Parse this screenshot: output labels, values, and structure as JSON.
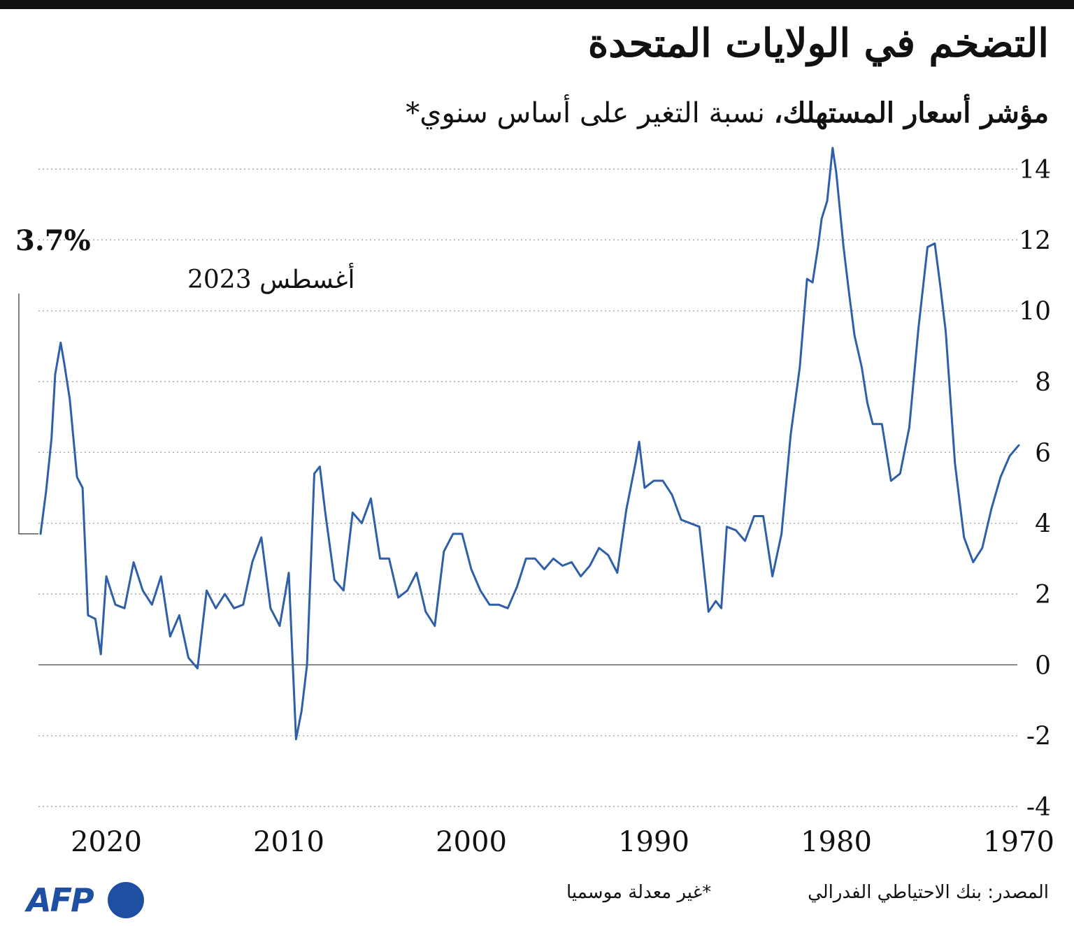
{
  "title": "التضخم في الولايات المتحدة",
  "subtitle_bold": "مؤشر أسعار المستهلك،",
  "subtitle_rest": " نسبة التغير على أساس سنوي*",
  "annotation": {
    "value": "3.7%",
    "date": "أغسطس 2023"
  },
  "source": "المصدر: بنك الاحتياطي الفدرالي",
  "footnote": "*غير معدلة موسميا",
  "logo": "AFP",
  "colors": {
    "line": "#2f5fa8",
    "logo": "#1f4fa0"
  },
  "chart_data": {
    "type": "line",
    "title": "التضخم في الولايات المتحدة",
    "ylabel": "",
    "xlabel": "",
    "x_reversed": true,
    "ylim": [
      -4,
      14
    ],
    "yticks": [
      "-4",
      "-2",
      "0",
      "2",
      "4",
      "6",
      "8",
      "10",
      "12",
      "14"
    ],
    "xticks": [
      "2020",
      "2010",
      "2000",
      "1990",
      "1980",
      "1970"
    ],
    "series": [
      {
        "x": [
          1970.0,
          1970.5,
          1971.0,
          1971.5,
          1972.0,
          1972.5,
          1973.0,
          1973.5,
          1974.0,
          1974.3,
          1974.6,
          1975.0,
          1975.5,
          1976.0,
          1976.5,
          1977.0,
          1977.5,
          1978.0,
          1978.3,
          1978.6,
          1979.0,
          1979.3,
          1979.6,
          1980.0,
          1980.2,
          1980.5,
          1980.8,
          1981.0,
          1981.3,
          1981.6,
          1982.0,
          1982.5,
          1983.0,
          1983.5,
          1984.0,
          1984.5,
          1985.0,
          1985.5,
          1986.0,
          1986.3,
          1986.6,
          1987.0,
          1987.5,
          1988.0,
          1988.5,
          1989.0,
          1989.5,
          1990.0,
          1990.5,
          1990.8,
          1991.0,
          1991.5,
          1992.0,
          1992.5,
          1993.0,
          1993.5,
          1994.0,
          1994.5,
          1995.0,
          1995.5,
          1996.0,
          1996.5,
          1997.0,
          1997.5,
          1998.0,
          1998.5,
          1999.0,
          1999.5,
          2000.0,
          2000.5,
          2001.0,
          2001.5,
          2002.0,
          2002.5,
          2003.0,
          2003.5,
          2004.0,
          2004.5,
          2005.0,
          2005.5,
          2006.0,
          2006.5,
          2007.0,
          2007.5,
          2008.0,
          2008.3,
          2008.6,
          2009.0,
          2009.3,
          2009.6,
          2010.0,
          2010.5,
          2011.0,
          2011.5,
          2012.0,
          2012.5,
          2013.0,
          2013.5,
          2014.0,
          2014.5,
          2015.0,
          2015.5,
          2016.0,
          2016.5,
          2017.0,
          2017.5,
          2018.0,
          2018.5,
          2019.0,
          2019.5,
          2020.0,
          2020.3,
          2020.6,
          2021.0,
          2021.3,
          2021.6,
          2022.0,
          2022.3,
          2022.5,
          2022.8,
          2023.0,
          2023.3,
          2023.6
        ],
        "values": [
          6.2,
          5.9,
          5.3,
          4.4,
          3.3,
          2.9,
          3.6,
          5.7,
          9.4,
          10.7,
          11.9,
          11.8,
          9.5,
          6.7,
          5.4,
          5.2,
          6.8,
          6.8,
          7.4,
          8.4,
          9.3,
          10.5,
          11.8,
          13.9,
          14.6,
          13.1,
          12.6,
          11.8,
          10.8,
          10.9,
          8.4,
          6.5,
          3.7,
          2.5,
          4.2,
          4.2,
          3.5,
          3.8,
          3.9,
          1.6,
          1.8,
          1.5,
          3.9,
          4.0,
          4.1,
          4.8,
          5.2,
          5.2,
          5.0,
          6.3,
          5.7,
          4.4,
          2.6,
          3.1,
          3.3,
          2.8,
          2.5,
          2.9,
          2.8,
          3.0,
          2.7,
          3.0,
          3.0,
          2.2,
          1.6,
          1.7,
          1.7,
          2.1,
          2.7,
          3.7,
          3.7,
          3.2,
          1.1,
          1.5,
          2.6,
          2.1,
          1.9,
          3.0,
          3.0,
          4.7,
          4.0,
          4.3,
          2.1,
          2.4,
          4.3,
          5.6,
          5.4,
          0.0,
          -1.3,
          -2.1,
          2.6,
          1.1,
          1.6,
          3.6,
          2.9,
          1.7,
          1.6,
          2.0,
          1.6,
          2.1,
          -0.1,
          0.2,
          1.4,
          0.8,
          2.5,
          1.7,
          2.1,
          2.9,
          1.6,
          1.7,
          2.5,
          0.3,
          1.3,
          1.4,
          5.0,
          5.3,
          7.5,
          8.5,
          9.1,
          8.2,
          6.4,
          4.9,
          3.7
        ]
      }
    ]
  }
}
